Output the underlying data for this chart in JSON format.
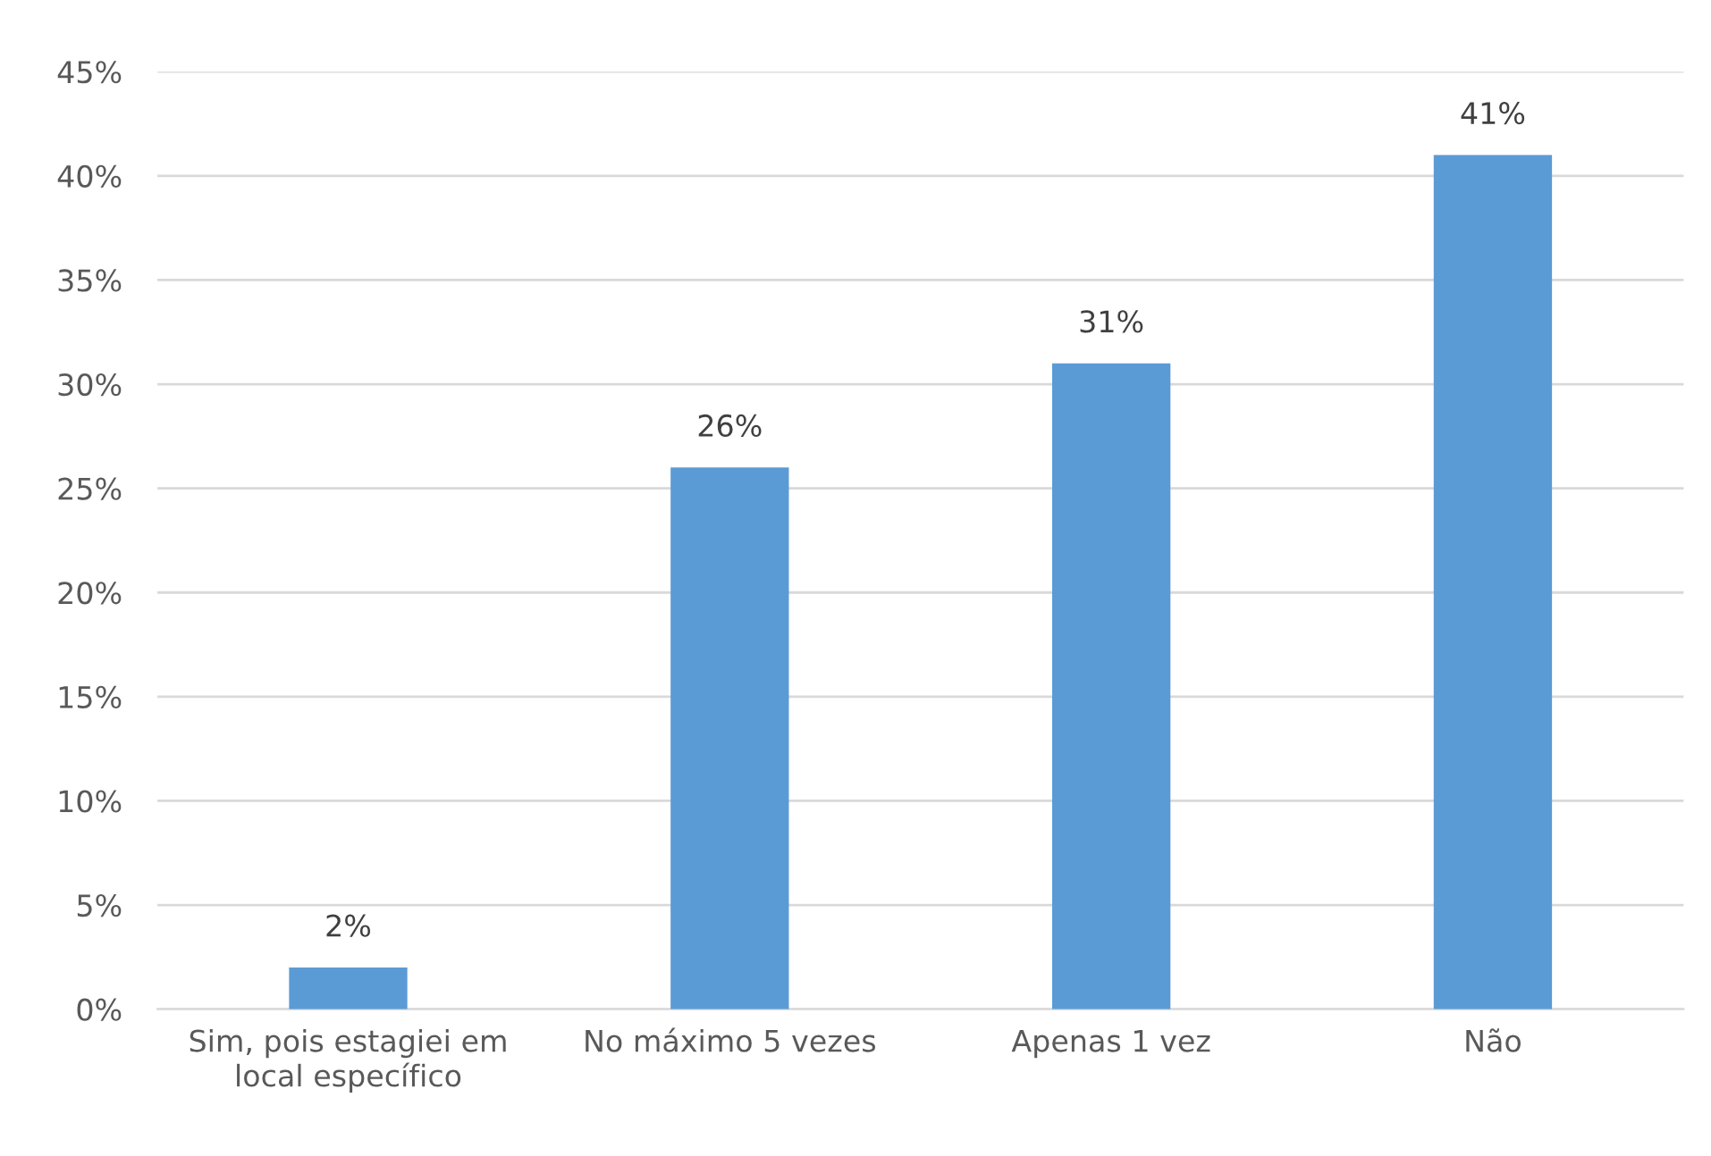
{
  "chart_data": {
    "type": "bar",
    "categories": [
      "Sim, pois estagiei em local específico",
      "No máximo 5 vezes",
      "Apenas 1 vez",
      "Não"
    ],
    "series": [
      {
        "color": "#5b9bd5",
        "values": [
          2,
          26,
          31,
          41
        ],
        "value_labels": [
          "2%",
          "26%",
          "31%",
          "41%"
        ]
      }
    ],
    "ylim": [
      0,
      45
    ],
    "yticks": [
      {
        "value": 0,
        "label": "0%"
      },
      {
        "value": 5,
        "label": "5%"
      },
      {
        "value": 10,
        "label": "10%"
      },
      {
        "value": 15,
        "label": "15%"
      },
      {
        "value": 20,
        "label": "20%"
      },
      {
        "value": 25,
        "label": "25%"
      },
      {
        "value": 30,
        "label": "30%"
      },
      {
        "value": 35,
        "label": "35%"
      },
      {
        "value": 40,
        "label": "40%"
      },
      {
        "value": 45,
        "label": "45%"
      }
    ],
    "grid": "y",
    "legend": false
  }
}
